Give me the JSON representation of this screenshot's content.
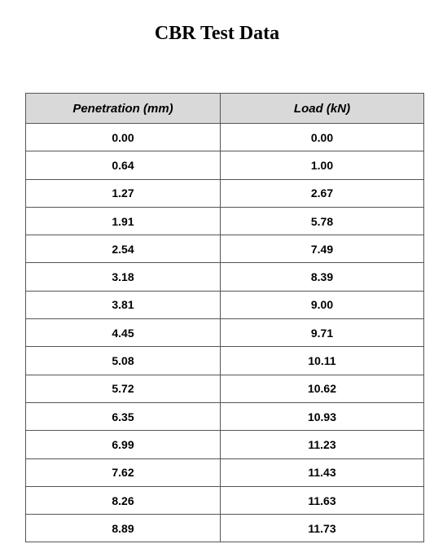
{
  "title": "CBR Test Data",
  "table": {
    "columns": [
      "Penetration (mm)",
      "Load (kN)"
    ],
    "rows": [
      [
        "0.00",
        "0.00"
      ],
      [
        "0.64",
        "1.00"
      ],
      [
        "1.27",
        "2.67"
      ],
      [
        "1.91",
        "5.78"
      ],
      [
        "2.54",
        "7.49"
      ],
      [
        "3.18",
        "8.39"
      ],
      [
        "3.81",
        "9.00"
      ],
      [
        "4.45",
        "9.71"
      ],
      [
        "5.08",
        "10.11"
      ],
      [
        "5.72",
        "10.62"
      ],
      [
        "6.35",
        "10.93"
      ],
      [
        "6.99",
        "11.23"
      ],
      [
        "7.62",
        "11.43"
      ],
      [
        "8.26",
        "11.63"
      ],
      [
        "8.89",
        "11.73"
      ]
    ]
  }
}
